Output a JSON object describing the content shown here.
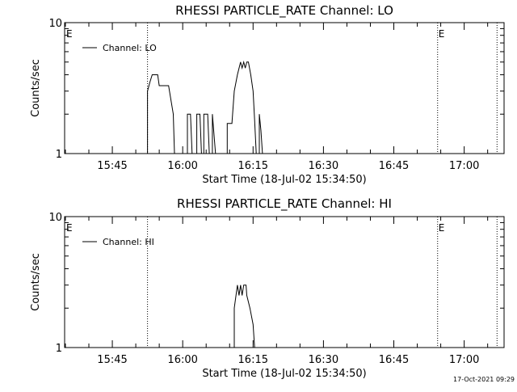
{
  "footer": {
    "timestamp": "17-Oct-2021 09:29"
  },
  "chart_data": [
    {
      "type": "line",
      "title": "RHESSI PARTICLE_RATE Channel: LO",
      "xlabel": "Start Time (18-Jul-02 15:34:50)",
      "ylabel": "Counts/sec",
      "y_scale": "log",
      "ylim": [
        1,
        10
      ],
      "y_ticks": [
        {
          "value": 1,
          "label": "1"
        },
        {
          "value": 10,
          "label": "10"
        }
      ],
      "xlim": [
        "15:34:50",
        "17:08:30"
      ],
      "x_ticks": [
        {
          "t": "15:45",
          "label": "15:45"
        },
        {
          "t": "16:00",
          "label": "16:00"
        },
        {
          "t": "16:15",
          "label": "16:15"
        },
        {
          "t": "16:30",
          "label": "16:30"
        },
        {
          "t": "16:45",
          "label": "16:45"
        },
        {
          "t": "17:00",
          "label": "17:00"
        }
      ],
      "legend": {
        "placement": "top-left",
        "entries": [
          "Channel: LO"
        ]
      },
      "event_markers": [
        {
          "t": "15:35:00",
          "label": "E",
          "line": false
        },
        {
          "t": "15:52:30",
          "label": "",
          "line": true
        },
        {
          "t": "16:54:20",
          "label": "E",
          "line": true
        },
        {
          "t": "17:07:00",
          "label": "",
          "line": true
        }
      ],
      "series": [
        {
          "name": "Channel: LO",
          "points": [
            [
              "15:52:30",
              1
            ],
            [
              "15:52:30",
              3
            ],
            [
              "15:53:00",
              3.5
            ],
            [
              "15:53:30",
              4
            ],
            [
              "15:54:40",
              4
            ],
            [
              "15:55:00",
              3.3
            ],
            [
              "15:57:00",
              3.3
            ],
            [
              "15:58:00",
              2
            ],
            [
              "15:58:15",
              1
            ],
            [
              "16:01:00",
              1
            ],
            [
              "16:01:00",
              2
            ],
            [
              "16:01:40",
              2
            ],
            [
              "16:02:00",
              1
            ],
            [
              "16:03:00",
              1
            ],
            [
              "16:03:00",
              2
            ],
            [
              "16:03:40",
              2
            ],
            [
              "16:04:00",
              1
            ],
            [
              "16:04:30",
              1
            ],
            [
              "16:04:30",
              2
            ],
            [
              "16:05:20",
              2
            ],
            [
              "16:05:40",
              1
            ],
            [
              "16:06:20",
              1
            ],
            [
              "16:06:20",
              2
            ],
            [
              "16:07:00",
              1
            ],
            [
              "16:09:30",
              1
            ],
            [
              "16:09:30",
              1.7
            ],
            [
              "16:10:30",
              1.7
            ],
            [
              "16:11:00",
              3
            ],
            [
              "16:11:40",
              4
            ],
            [
              "16:12:20",
              5
            ],
            [
              "16:12:40",
              4.5
            ],
            [
              "16:13:00",
              5
            ],
            [
              "16:13:20",
              4.5
            ],
            [
              "16:13:40",
              5
            ],
            [
              "16:14:00",
              5
            ],
            [
              "16:14:30",
              4
            ],
            [
              "16:15:00",
              3
            ],
            [
              "16:15:20",
              1.8
            ],
            [
              "16:15:40",
              1
            ],
            [
              "16:16:20",
              1
            ],
            [
              "16:16:20",
              2
            ],
            [
              "16:16:40",
              1.5
            ],
            [
              "16:17:00",
              1
            ]
          ]
        }
      ]
    },
    {
      "type": "line",
      "title": "RHESSI PARTICLE_RATE Channel: HI",
      "xlabel": "Start Time (18-Jul-02 15:34:50)",
      "ylabel": "Counts/sec",
      "y_scale": "log",
      "ylim": [
        1,
        10
      ],
      "y_ticks": [
        {
          "value": 1,
          "label": "1"
        },
        {
          "value": 10,
          "label": "10"
        }
      ],
      "xlim": [
        "15:34:50",
        "17:08:30"
      ],
      "x_ticks": [
        {
          "t": "15:45",
          "label": "15:45"
        },
        {
          "t": "16:00",
          "label": "16:00"
        },
        {
          "t": "16:15",
          "label": "16:15"
        },
        {
          "t": "16:30",
          "label": "16:30"
        },
        {
          "t": "16:45",
          "label": "16:45"
        },
        {
          "t": "17:00",
          "label": "17:00"
        }
      ],
      "legend": {
        "placement": "top-left",
        "entries": [
          "Channel: HI"
        ]
      },
      "event_markers": [
        {
          "t": "15:35:00",
          "label": "E",
          "line": false
        },
        {
          "t": "15:52:30",
          "label": "",
          "line": true
        },
        {
          "t": "16:54:20",
          "label": "E",
          "line": true
        },
        {
          "t": "17:07:00",
          "label": "",
          "line": true
        }
      ],
      "series": [
        {
          "name": "Channel: HI",
          "points": [
            [
              "16:11:00",
              1
            ],
            [
              "16:11:00",
              2
            ],
            [
              "16:11:40",
              3
            ],
            [
              "16:12:00",
              2.5
            ],
            [
              "16:12:20",
              3
            ],
            [
              "16:12:40",
              2.5
            ],
            [
              "16:13:00",
              3
            ],
            [
              "16:13:30",
              3
            ],
            [
              "16:13:40",
              2.5
            ],
            [
              "16:14:20",
              2
            ],
            [
              "16:15:00",
              1.5
            ],
            [
              "16:15:20",
              1
            ]
          ]
        }
      ]
    }
  ]
}
